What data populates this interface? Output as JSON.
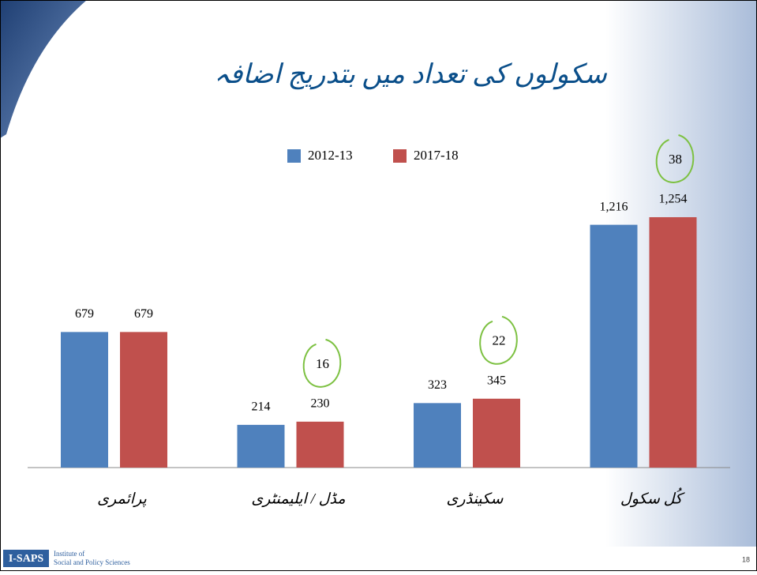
{
  "chart_data": {
    "type": "bar",
    "title": "سکولوں کی تعداد میں بتدریج اضافہ",
    "categories": [
      "پرائمری",
      "مڈل / ایلیمنٹری",
      "سکینڈری",
      "کُل سکول"
    ],
    "series": [
      {
        "name": "2012-13",
        "color": "#4f81bd",
        "values": [
          679,
          214,
          323,
          1216
        ],
        "value_labels": [
          "679",
          "214",
          "323",
          "1,216"
        ]
      },
      {
        "name": "2017-18",
        "color": "#c0504d",
        "values": [
          679,
          230,
          345,
          1254
        ],
        "value_labels": [
          "679",
          "230",
          "345",
          "1,254"
        ]
      }
    ],
    "annotations": [
      16,
      22,
      38
    ],
    "annotation_color": "#7dc142"
  },
  "footer": {
    "logo": "I-SAPS",
    "institute": [
      "Institute of",
      "Social and Policy Sciences"
    ],
    "page": "18"
  }
}
